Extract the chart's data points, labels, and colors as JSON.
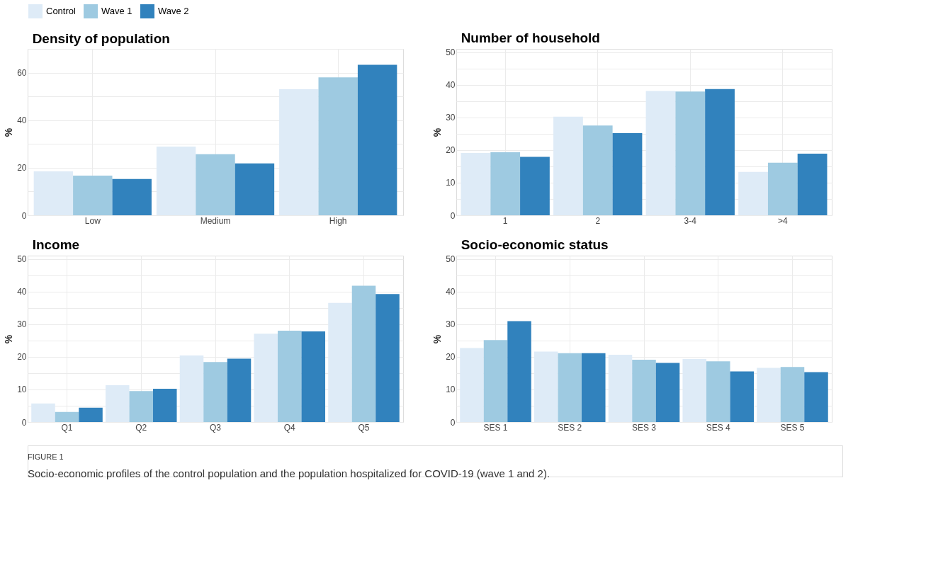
{
  "chart_data": [
    {
      "type": "bar",
      "title": "Density of population",
      "ylabel": "%",
      "categories": [
        "Low",
        "Medium",
        "High"
      ],
      "series": [
        {
          "name": "Control",
          "color": "#deebf7",
          "values": [
            18.5,
            28.9,
            53
          ]
        },
        {
          "name": "Wave 1",
          "color": "#9ecae1",
          "values": [
            16.7,
            25.7,
            58
          ]
        },
        {
          "name": "Wave 2",
          "color": "#3182bd",
          "values": [
            15.3,
            21.8,
            63.3
          ]
        }
      ],
      "ylim": [
        0,
        70
      ],
      "yticks": [
        0,
        {
          "value": 10,
          "label": null
        },
        20,
        {
          "value": 30,
          "label": null
        },
        40,
        {
          "value": 50,
          "label": null
        },
        60,
        {
          "value": 70,
          "label": null
        }
      ],
      "grid": true,
      "legend": "top"
    },
    {
      "type": "bar",
      "title": "Number of household",
      "ylabel": "%",
      "categories": [
        "1",
        "2",
        "3-4",
        ">4"
      ],
      "series": [
        {
          "name": "Control",
          "color": "#deebf7",
          "values": [
            19.1,
            30.2,
            38.1,
            13.3
          ]
        },
        {
          "name": "Wave 1",
          "color": "#9ecae1",
          "values": [
            19.3,
            27.5,
            37.9,
            16.1
          ]
        },
        {
          "name": "Wave 2",
          "color": "#3182bd",
          "values": [
            17.9,
            25.2,
            38.7,
            18.9
          ]
        }
      ],
      "ylim": [
        0,
        51
      ],
      "yticks": [
        0,
        {
          "value": 5,
          "label": null
        },
        10,
        {
          "value": 15,
          "label": null
        },
        20,
        {
          "value": 25,
          "label": null
        },
        30,
        {
          "value": 35,
          "label": null
        },
        40,
        {
          "value": 45,
          "label": null
        },
        50
      ],
      "grid": true,
      "legend": "top"
    },
    {
      "type": "bar",
      "title": "Income",
      "ylabel": "%",
      "categories": [
        "Q1",
        "Q2",
        "Q3",
        "Q4",
        "Q5"
      ],
      "series": [
        {
          "name": "Control",
          "color": "#deebf7",
          "values": [
            5.7,
            11.3,
            20.4,
            27.1,
            36.5
          ]
        },
        {
          "name": "Wave 1",
          "color": "#9ecae1",
          "values": [
            3.1,
            9.5,
            18.4,
            28,
            41.8
          ]
        },
        {
          "name": "Wave 2",
          "color": "#3182bd",
          "values": [
            4.4,
            10.2,
            19.4,
            27.8,
            39.2
          ]
        }
      ],
      "ylim": [
        0,
        51
      ],
      "yticks": [
        0,
        {
          "value": 5,
          "label": null
        },
        10,
        {
          "value": 15,
          "label": null
        },
        20,
        {
          "value": 25,
          "label": null
        },
        30,
        {
          "value": 35,
          "label": null
        },
        40,
        {
          "value": 45,
          "label": null
        },
        50
      ],
      "grid": true,
      "legend": "top"
    },
    {
      "type": "bar",
      "title": "Socio-economic status",
      "ylabel": "%",
      "categories": [
        "SES 1",
        "SES 2",
        "SES 3",
        "SES 4",
        "SES 5"
      ],
      "series": [
        {
          "name": "Control",
          "color": "#deebf7",
          "values": [
            22.7,
            21.6,
            20.6,
            19.3,
            16.6
          ]
        },
        {
          "name": "Wave 1",
          "color": "#9ecae1",
          "values": [
            25.1,
            21.1,
            19.1,
            18.6,
            16.9
          ]
        },
        {
          "name": "Wave 2",
          "color": "#3182bd",
          "values": [
            30.9,
            21.1,
            18.1,
            15.5,
            15.3
          ]
        }
      ],
      "ylim": [
        0,
        51
      ],
      "yticks": [
        0,
        {
          "value": 5,
          "label": null
        },
        10,
        {
          "value": 15,
          "label": null
        },
        20,
        {
          "value": 25,
          "label": null
        },
        30,
        {
          "value": 35,
          "label": null
        },
        40,
        {
          "value": 45,
          "label": null
        },
        50
      ],
      "grid": true,
      "legend": "top",
      "annotations": [
        "FIGURE 1",
        "Socio-economic profiles of the control population and the population hospitalized for COVID-19 (wave 1 and 2)."
      ]
    }
  ]
}
